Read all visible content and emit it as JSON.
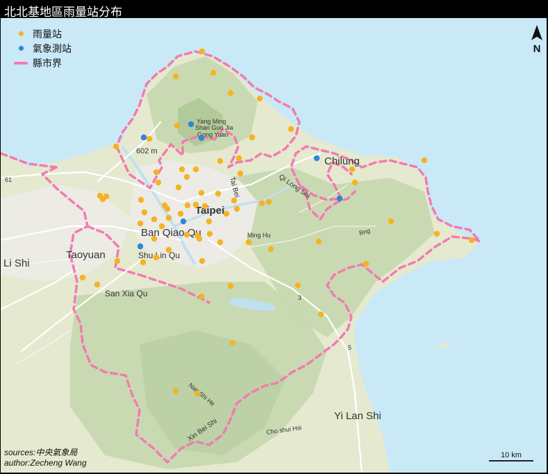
{
  "title": "北北基地區雨量站分布",
  "legend": [
    {
      "label": "雨量站",
      "color": "#f5b324",
      "symbol": "dot"
    },
    {
      "label": "氣象測站",
      "color": "#2f86d6",
      "symbol": "dot"
    },
    {
      "label": "縣市界",
      "color": "#f27bb1",
      "symbol": "line"
    }
  ],
  "north_label": "N",
  "scale_label": "10 km",
  "credits": {
    "sources": "sources:中央氣象局",
    "author": "author:Zecheng Wang"
  },
  "place_labels": {
    "taipei": "Taipei",
    "ban_qiao": "Ban Qiao Qu",
    "shu_lin": "Shu Lin Qu",
    "taoyuan": "Taoyuan",
    "li_shi": "Li Shi",
    "chilung": "Chilung",
    "yi_lan": "Yi Lan Shi",
    "san_xia": "San Xia Qu",
    "yang_ming": "Yang Ming",
    "shan_guo": "Shan Guo Jia",
    "gong_yuan": "Gong Yuan",
    "elevation": "602 m",
    "tai_bei": "Tai Bei",
    "qi_long": "Qi Long Shi",
    "nan_shi": "Nan Shi He",
    "xin_bei": "Xin Bei Shi",
    "chu_shui": "Cho shui Hsi",
    "bng": "Bng",
    "ming_hu": "Ming Hu",
    "road_5": "5",
    "road_61": "61",
    "road_3": "3"
  },
  "colors": {
    "sea": "#c9e9f7",
    "land": "#e5e9cf",
    "forest": "#c4d7ad",
    "urban": "#ececea",
    "boundary": "#f27bb1",
    "rain_station": "#f5b324",
    "weather_station": "#2f86d6",
    "road": "#ffffff"
  },
  "icons": {
    "north_arrow": "north-arrow-icon"
  },
  "rain_stations": 68,
  "weather_stations": 8
}
